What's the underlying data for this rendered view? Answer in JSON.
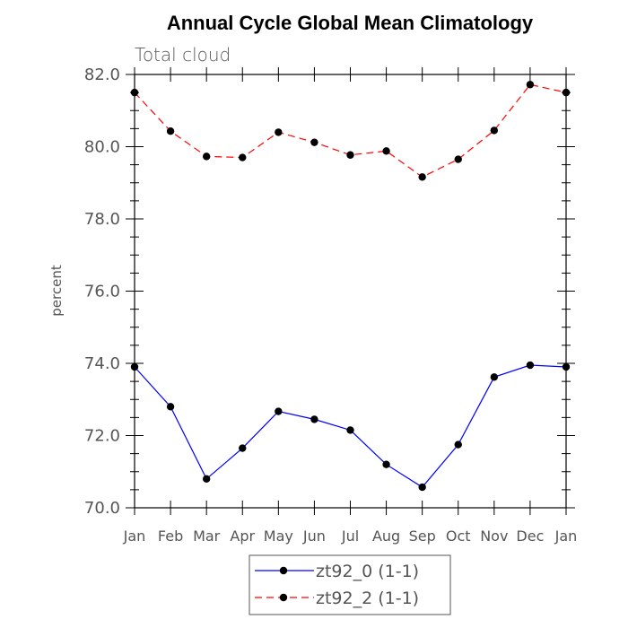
{
  "chart_data": {
    "type": "line",
    "title": "Annual Cycle Global Mean Climatology",
    "subtitle": "Total cloud",
    "xlabel": "",
    "ylabel": "percent",
    "categories": [
      "Jan",
      "Feb",
      "Mar",
      "Apr",
      "May",
      "Jun",
      "Jul",
      "Aug",
      "Sep",
      "Oct",
      "Nov",
      "Dec",
      "Jan"
    ],
    "ylim": [
      70.0,
      82.0
    ],
    "yticks": [
      "70.0",
      "72.0",
      "74.0",
      "76.0",
      "78.0",
      "80.0",
      "82.0"
    ],
    "grid": false,
    "legend_position": "bottom-center",
    "series": [
      {
        "name": "zt92_0 (1-1)",
        "color": "#0000ff",
        "line_style": "solid",
        "marker": "filled-circle",
        "values": [
          73.9,
          72.8,
          70.8,
          71.65,
          72.67,
          72.45,
          72.15,
          71.2,
          70.57,
          71.75,
          73.62,
          73.95,
          73.9
        ]
      },
      {
        "name": "zt92_2 (1-1)",
        "color": "#ff0000",
        "line_style": "dashed",
        "marker": "filled-circle",
        "values": [
          81.5,
          80.43,
          79.73,
          79.7,
          80.4,
          80.12,
          79.77,
          79.88,
          79.16,
          79.65,
          80.45,
          81.72,
          81.5
        ]
      }
    ]
  }
}
